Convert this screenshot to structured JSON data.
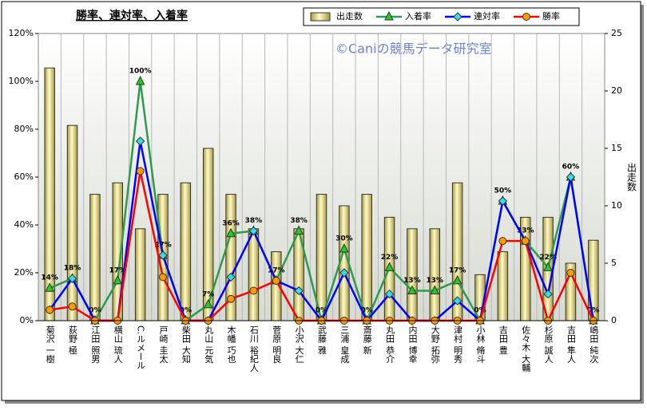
{
  "chart_data": {
    "type": "combo",
    "title": "勝率、連対率、入着率",
    "watermark": "©Caniの競馬データ研究室",
    "y2_label": "出走数",
    "categories": [
      "菊沢 一樹",
      "荻野 極",
      "江田 照男",
      "横山 琉人",
      "C.ルメール",
      "戸崎 圭太",
      "柴田 大知",
      "丸山 元気",
      "木幡 巧也",
      "石川 裕紀人",
      "菅原 明良",
      "小沢 大仁",
      "武藤 雅",
      "三浦 皇成",
      "斎藤 新",
      "丸田 恭介",
      "内田 博幸",
      "大野 拓弥",
      "津村 明秀",
      "小林 脩斗",
      "吉田 豊",
      "佐々木 大輔",
      "杉原 誠人",
      "吉田 隼人",
      "嶋田 純次"
    ],
    "series": [
      {
        "name": "出走数",
        "type": "bar",
        "axis": "y2",
        "color": "#e8e08a",
        "values": [
          22,
          17,
          11,
          12,
          8,
          11,
          12,
          15,
          11,
          8,
          6,
          8,
          11,
          10,
          11,
          9,
          8,
          8,
          12,
          4,
          6,
          9,
          9,
          5,
          7
        ]
      },
      {
        "name": "入着率",
        "type": "line",
        "color": "#2e9a4e",
        "marker": "triangle",
        "marker_color": "#22cc22",
        "values": [
          13.6,
          17.6,
          0,
          16.7,
          100,
          27.3,
          0,
          6.7,
          36.4,
          37.5,
          16.7,
          37.5,
          0,
          30,
          0,
          22.2,
          12.5,
          12.5,
          16.7,
          0,
          50,
          33.3,
          22.2,
          60,
          0
        ],
        "value_labels": [
          "14%",
          "18%",
          "0%",
          "17%",
          "100%",
          "27%",
          "0%",
          "7%",
          "36%",
          "38%",
          "17%",
          "38%",
          "0%",
          "30%",
          "0%",
          "22%",
          "13%",
          "13%",
          "17%",
          "0%",
          "50%",
          "33%",
          "22%",
          "60%",
          "0%"
        ]
      },
      {
        "name": "連対率",
        "type": "line",
        "color": "#0000ff",
        "marker": "diamond",
        "marker_color": "#33ddee",
        "values": [
          4.5,
          17.6,
          0,
          0,
          75,
          27.3,
          0,
          0,
          18.2,
          37.5,
          16.7,
          12.5,
          0,
          20,
          0,
          11.1,
          0,
          0,
          8.3,
          0,
          50,
          33.3,
          11.1,
          60,
          0
        ]
      },
      {
        "name": "勝率",
        "type": "line",
        "color": "#ff0000",
        "marker": "circle",
        "marker_color": "#ff9900",
        "values": [
          4.5,
          5.9,
          0,
          0,
          62.5,
          18.2,
          0,
          0,
          9.1,
          12.5,
          16.7,
          0,
          0,
          0,
          0,
          0,
          0,
          0,
          0,
          0,
          33.3,
          33.3,
          0,
          20,
          0
        ]
      }
    ],
    "ylim": [
      0,
      120
    ],
    "yticks": [
      {
        "value": 0,
        "label": "0%"
      },
      {
        "value": 20,
        "label": "20%"
      },
      {
        "value": 40,
        "label": "40%"
      },
      {
        "value": 60,
        "label": "60%"
      },
      {
        "value": 80,
        "label": "80%"
      },
      {
        "value": 100,
        "label": "100%"
      },
      {
        "value": 120,
        "label": "120%"
      }
    ],
    "y2lim": [
      0,
      25
    ],
    "y2ticks": [
      0,
      5,
      10,
      15,
      20,
      25
    ]
  }
}
